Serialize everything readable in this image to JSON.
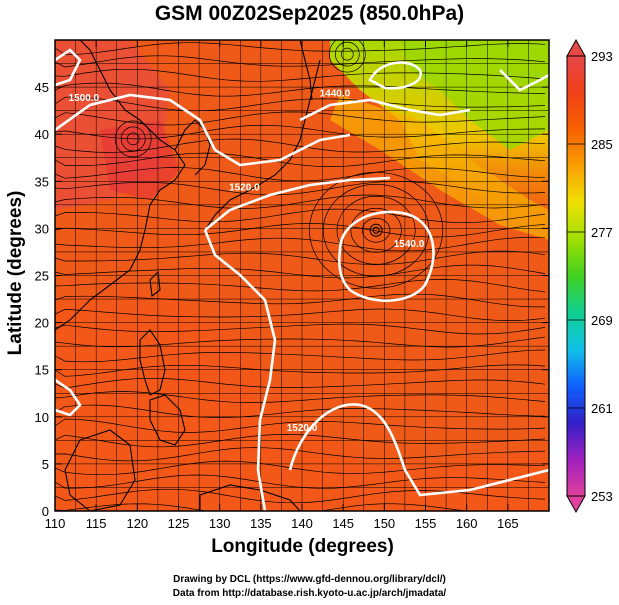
{
  "title": "GSM 00Z02Sep2025 (850.0hPa)",
  "xlabel": "Longitude (degrees)",
  "ylabel": "Latitude  (degrees)",
  "credits": [
    "Drawing by DCL (https://www.gfd-dennou.org/library/dcl/)",
    "Data from http://database.rish.kyoto-u.ac.jp/arch/jmadata/"
  ],
  "map": {
    "lon_range": [
      110,
      170
    ],
    "lat_range": [
      0,
      50
    ],
    "lon_ticks": [
      110,
      115,
      120,
      125,
      130,
      135,
      140,
      145,
      150,
      155,
      160,
      165
    ],
    "lat_ticks": [
      0,
      5,
      10,
      15,
      20,
      25,
      30,
      35,
      40,
      45
    ],
    "grid": true,
    "grid_step_deg": 2.5,
    "field": "temperature",
    "fill": "temperature shading with streamlines and white geopotential height contours",
    "contour_labels": [
      {
        "text": "1440.0",
        "lon": 144,
        "lat": 44
      },
      {
        "text": "1500.0",
        "lon": 113.5,
        "lat": 43.5
      },
      {
        "text": "1520.0",
        "lon": 133,
        "lat": 34
      },
      {
        "text": "1540.0",
        "lon": 153,
        "lat": 28
      },
      {
        "text": "1520.0",
        "lon": 140,
        "lat": 8.5
      }
    ],
    "high_center": {
      "lon": 149,
      "lat": 29.8
    },
    "lows": [
      {
        "lon": 119.5,
        "lat": 39.5
      },
      {
        "lon": 145.5,
        "lat": 48.5
      }
    ]
  },
  "colorbar": {
    "min": 253,
    "max": 293,
    "tick_labels": [
      "293",
      "285",
      "277",
      "269",
      "261",
      "253"
    ],
    "colors": [
      "#e0409a",
      "#a020c0",
      "#3020c8",
      "#1060ff",
      "#10c0e8",
      "#10d090",
      "#40d020",
      "#a0e000",
      "#f0e000",
      "#f8a000",
      "#f86000",
      "#f04018",
      "#e84848"
    ]
  }
}
